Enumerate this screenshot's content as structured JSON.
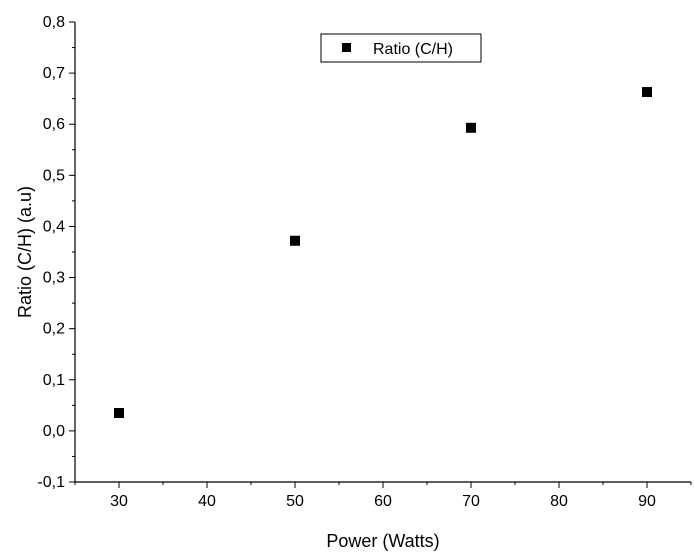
{
  "chart_data": {
    "type": "scatter",
    "title": "",
    "xlabel": "Power (Watts)",
    "ylabel": "Ratio (C/H) (a.u)",
    "xlim": [
      25,
      95
    ],
    "ylim": [
      -0.1,
      0.8
    ],
    "x_ticks": [
      30,
      40,
      50,
      60,
      70,
      80,
      90
    ],
    "x_tick_labels": [
      "30",
      "40",
      "50",
      "60",
      "70",
      "80",
      "90"
    ],
    "y_ticks": [
      -0.1,
      0.0,
      0.1,
      0.2,
      0.3,
      0.4,
      0.5,
      0.6,
      0.7,
      0.8
    ],
    "y_tick_labels": [
      "-0,1",
      "0,0",
      "0,1",
      "0,2",
      "0,3",
      "0,4",
      "0,5",
      "0,6",
      "0,7",
      "0,8"
    ],
    "grid": false,
    "legend": {
      "position": "top-center",
      "entries": [
        "Ratio (C/H)"
      ]
    },
    "series": [
      {
        "name": "Ratio (C/H)",
        "marker": "square",
        "color": "#000000",
        "x": [
          30,
          50,
          70,
          90
        ],
        "y": [
          0.035,
          0.372,
          0.593,
          0.663
        ]
      }
    ]
  }
}
